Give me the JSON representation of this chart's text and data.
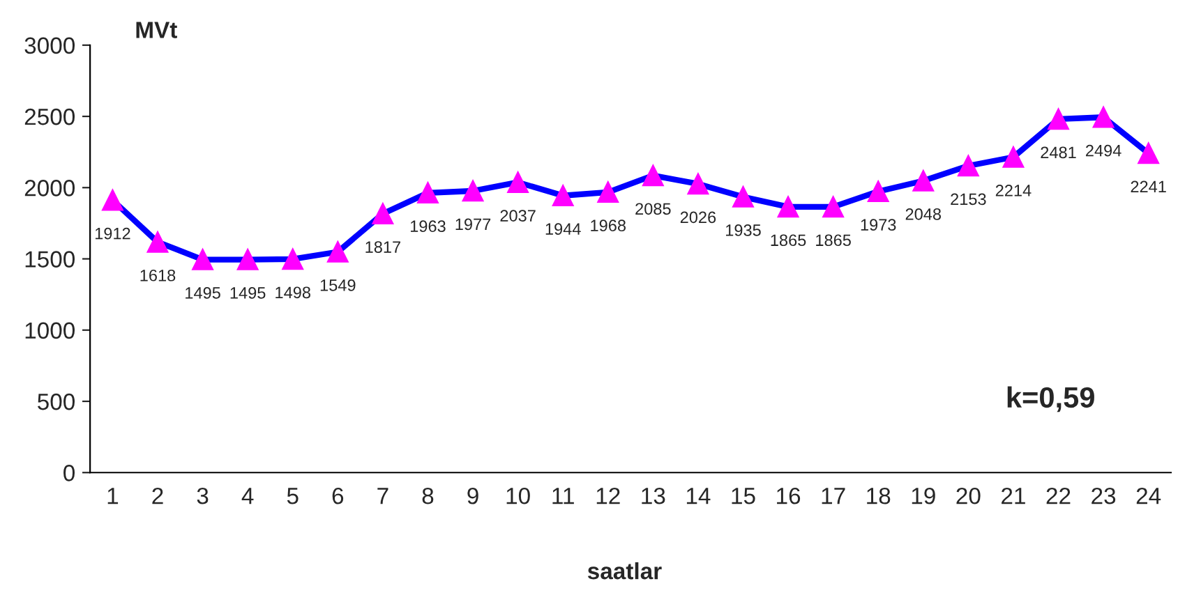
{
  "chart_data": {
    "type": "line",
    "ylabel": "MVt",
    "xlabel": "saatlar",
    "categories": [
      "1",
      "2",
      "3",
      "4",
      "5",
      "6",
      "7",
      "8",
      "9",
      "10",
      "11",
      "12",
      "13",
      "14",
      "15",
      "16",
      "17",
      "18",
      "19",
      "20",
      "21",
      "22",
      "23",
      "24"
    ],
    "series": [
      {
        "color": "#0000ff",
        "colors": [
          "#ff00ff",
          "#ff00ff",
          "#ff00ff",
          "#ff00ff",
          "#ff00ff",
          "#ff00ff",
          "#ff00ff",
          "#ff00ff",
          "#ff00ff",
          "#ff00ff",
          "#ff00ff",
          "#ff00ff",
          "#ff00ff",
          "#ff00ff",
          "#ff00ff",
          "#ff00ff",
          "#ff00ff",
          "#ff00ff",
          "#ff00ff",
          "#ff00ff",
          "#ff00ff",
          "#ff00ff",
          "#ff00ff",
          "#ff00ff"
        ],
        "values": [
          1912,
          1618,
          1495,
          1495,
          1498,
          1549,
          1817,
          1963,
          1977,
          2037,
          1944,
          1968,
          2085,
          2026,
          1935,
          1865,
          1865,
          1973,
          2048,
          2153,
          2214,
          2481,
          2494,
          2241
        ]
      }
    ],
    "ylim": [
      0,
      3000
    ],
    "yticks": [
      0,
      500,
      1000,
      1500,
      2000,
      2500,
      3000
    ],
    "data_labels": true,
    "marker": "triangle",
    "line_style": "solid",
    "grid": false,
    "legend": false,
    "annotations": [
      "k=0,59"
    ]
  }
}
